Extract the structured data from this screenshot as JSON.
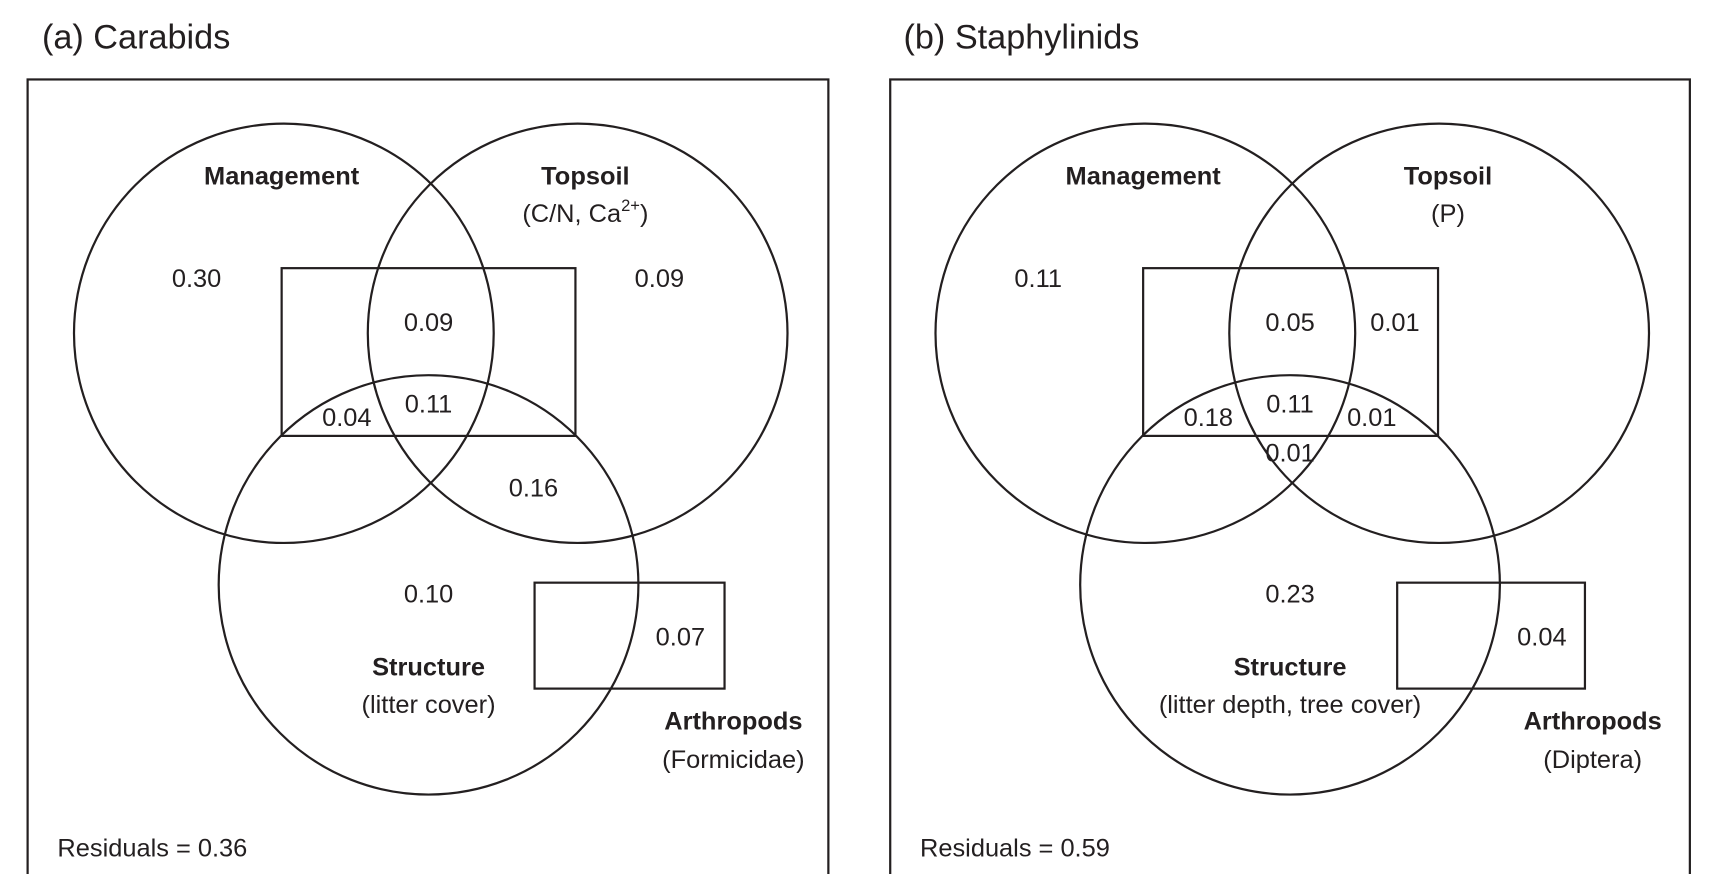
{
  "panels": [
    {
      "title": "(a) Carabids",
      "management": "Management",
      "topsoil": "Topsoil",
      "topsoil_sub": "(C/N, Ca",
      "topsoil_sup": "2+",
      "topsoil_close": ")",
      "structure": "Structure",
      "structure_sub": "(litter cover)",
      "arthropods": "Arthropods",
      "arthropods_sub": "(Formicidae)",
      "residuals": "Residuals = 0.36",
      "values": {
        "management_only": "0.30",
        "topsoil_only": "0.09",
        "mgmt_topsoil": "0.09",
        "mgmt_structure": "0.04",
        "mgmt_topsoil_structure": "0.11",
        "topsoil_structure": "0.16",
        "structure_only": "0.10",
        "structure_arthropods": "0.07"
      }
    },
    {
      "title": "(b) Staphylinids",
      "management": "Management",
      "topsoil": "Topsoil",
      "topsoil_sub": "(P)",
      "structure": "Structure",
      "structure_sub": "(litter depth, tree cover)",
      "arthropods": "Arthropods",
      "arthropods_sub": "(Diptera)",
      "residuals": "Residuals = 0.59",
      "values": {
        "management_only": "0.11",
        "mgmt_topsoil": "0.05",
        "topsoil_rect": "0.01",
        "mgmt_structure": "0.18",
        "mgmt_topsoil_structure": "0.11",
        "topsoil_structure_rect": "0.01",
        "mgmt_topsoil_structure_low": "0.01",
        "structure_only": "0.23",
        "structure_arthropods": "0.04"
      }
    }
  ]
}
